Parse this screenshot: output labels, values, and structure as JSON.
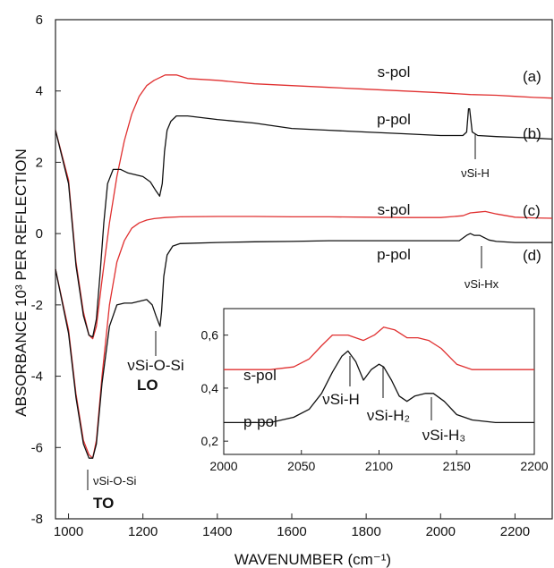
{
  "chart_data": [
    {
      "type": "line",
      "xlabel": "WAVENUMBER (cm⁻¹)",
      "ylabel": "ABSORBANCE 10³ PER REFLECTION",
      "xlim": [
        965,
        2300
      ],
      "ylim": [
        -8,
        6
      ],
      "xticks": [
        1000,
        1200,
        1400,
        1600,
        1800,
        2000,
        2200
      ],
      "yticks": [
        -8,
        -6,
        -4,
        -2,
        0,
        2,
        4,
        6
      ],
      "grid": false,
      "series": [
        {
          "name": "s-pol",
          "tag": "(a)",
          "color": "#e03030",
          "x": [
            965,
            1000,
            1020,
            1040,
            1055,
            1065,
            1075,
            1090,
            1110,
            1130,
            1150,
            1170,
            1190,
            1210,
            1230,
            1260,
            1290,
            1320,
            1400,
            1500,
            1600,
            1700,
            1800,
            1900,
            2000,
            2080,
            2150,
            2200,
            2250,
            2300
          ],
          "y": [
            2.9,
            1.5,
            -0.8,
            -2.2,
            -2.85,
            -2.95,
            -2.6,
            -1.3,
            0.3,
            1.6,
            2.6,
            3.35,
            3.85,
            4.15,
            4.3,
            4.45,
            4.45,
            4.35,
            4.3,
            4.2,
            4.15,
            4.1,
            4.05,
            4.0,
            3.95,
            3.9,
            3.88,
            3.85,
            3.82,
            3.8
          ]
        },
        {
          "name": "p-pol",
          "tag": "(b)",
          "color": "#111111",
          "x": [
            965,
            1000,
            1020,
            1040,
            1055,
            1065,
            1075,
            1085,
            1095,
            1105,
            1120,
            1140,
            1160,
            1180,
            1200,
            1220,
            1235,
            1245,
            1252,
            1258,
            1265,
            1275,
            1290,
            1320,
            1400,
            1500,
            1600,
            1700,
            1800,
            1900,
            2000,
            2060,
            2070,
            2075,
            2078,
            2085,
            2100,
            2150,
            2200,
            2250,
            2300
          ],
          "y": [
            2.9,
            1.4,
            -0.9,
            -2.3,
            -2.85,
            -2.9,
            -2.4,
            -1.1,
            0.3,
            1.4,
            1.8,
            1.8,
            1.7,
            1.65,
            1.6,
            1.45,
            1.2,
            1.05,
            1.4,
            2.3,
            2.9,
            3.15,
            3.3,
            3.3,
            3.2,
            3.1,
            2.95,
            2.9,
            2.85,
            2.8,
            2.75,
            2.75,
            2.85,
            3.5,
            3.5,
            2.85,
            2.75,
            2.72,
            2.7,
            2.68,
            2.65
          ]
        },
        {
          "name": "s-pol",
          "tag": "(c)",
          "color": "#e03030",
          "x": [
            965,
            1000,
            1020,
            1040,
            1055,
            1065,
            1075,
            1090,
            1110,
            1130,
            1150,
            1170,
            1190,
            1210,
            1230,
            1260,
            1300,
            1400,
            1500,
            1600,
            1700,
            1800,
            1900,
            2000,
            2060,
            2080,
            2100,
            2120,
            2150,
            2200,
            2250,
            2300
          ],
          "y": [
            -1.0,
            -2.7,
            -4.5,
            -5.8,
            -6.2,
            -6.3,
            -5.8,
            -4.0,
            -2.0,
            -0.8,
            -0.2,
            0.15,
            0.3,
            0.38,
            0.42,
            0.45,
            0.47,
            0.48,
            0.48,
            0.47,
            0.47,
            0.46,
            0.45,
            0.45,
            0.5,
            0.58,
            0.6,
            0.62,
            0.55,
            0.46,
            0.44,
            0.43
          ]
        },
        {
          "name": "p-pol",
          "tag": "(d)",
          "color": "#111111",
          "x": [
            965,
            1000,
            1020,
            1040,
            1055,
            1065,
            1075,
            1090,
            1110,
            1130,
            1150,
            1170,
            1190,
            1210,
            1225,
            1235,
            1242,
            1246,
            1250,
            1256,
            1265,
            1280,
            1300,
            1400,
            1500,
            1600,
            1700,
            1800,
            1900,
            2000,
            2050,
            2070,
            2080,
            2090,
            2105,
            2130,
            2150,
            2200,
            2250,
            2300
          ],
          "y": [
            -1.0,
            -2.8,
            -4.6,
            -5.9,
            -6.3,
            -6.3,
            -5.9,
            -4.2,
            -2.6,
            -2.0,
            -1.95,
            -1.95,
            -1.9,
            -1.85,
            -2.0,
            -2.3,
            -2.5,
            -2.6,
            -2.2,
            -1.2,
            -0.6,
            -0.35,
            -0.28,
            -0.25,
            -0.23,
            -0.22,
            -0.2,
            -0.2,
            -0.2,
            -0.2,
            -0.2,
            -0.05,
            0.0,
            -0.05,
            -0.05,
            -0.18,
            -0.22,
            -0.25,
            -0.25,
            -0.25
          ]
        }
      ],
      "annotations": [
        {
          "text": "νSi-H",
          "x": 2085,
          "y": 2.1
        },
        {
          "text": "νSi-Hx",
          "x": 2165,
          "y": -1.6
        },
        {
          "text": "νSi-O-Si",
          "x": 1250,
          "y": -4.35
        },
        {
          "text": "LO",
          "x": 1250,
          "y": -5.0
        },
        {
          "text": "νSi-O-Si",
          "x": 1070,
          "y": -7.05
        },
        {
          "text": "TO",
          "x": 1070,
          "y": -7.8
        }
      ]
    },
    {
      "type": "line",
      "inset": true,
      "xlim": [
        2000,
        2200
      ],
      "ylim": [
        0.15,
        0.7
      ],
      "xticks": [
        2000,
        2050,
        2100,
        2150,
        2200
      ],
      "yticks": [
        0.2,
        0.4,
        0.6
      ],
      "ytick_labels": [
        "0,2",
        "0,4",
        "0,6"
      ],
      "grid": false,
      "series": [
        {
          "name": "s-pol",
          "color": "#e03030",
          "x": [
            2000,
            2030,
            2045,
            2055,
            2063,
            2070,
            2080,
            2090,
            2097,
            2103,
            2110,
            2118,
            2125,
            2132,
            2140,
            2150,
            2160,
            2175,
            2200
          ],
          "y": [
            0.47,
            0.47,
            0.48,
            0.51,
            0.56,
            0.6,
            0.6,
            0.58,
            0.6,
            0.63,
            0.62,
            0.59,
            0.59,
            0.58,
            0.55,
            0.49,
            0.47,
            0.47,
            0.47
          ]
        },
        {
          "name": "p-pol",
          "color": "#111111",
          "x": [
            2000,
            2030,
            2045,
            2055,
            2063,
            2070,
            2076,
            2080,
            2085,
            2090,
            2095,
            2100,
            2103,
            2108,
            2113,
            2118,
            2123,
            2130,
            2135,
            2142,
            2150,
            2160,
            2175,
            2200
          ],
          "y": [
            0.27,
            0.27,
            0.29,
            0.32,
            0.38,
            0.46,
            0.52,
            0.54,
            0.5,
            0.43,
            0.47,
            0.49,
            0.48,
            0.43,
            0.37,
            0.35,
            0.37,
            0.38,
            0.38,
            0.35,
            0.3,
            0.28,
            0.27,
            0.27
          ]
        }
      ],
      "annotations": [
        {
          "text": "νSi-H",
          "x": 2080,
          "y": 0.5
        },
        {
          "text": "νSi-H₂",
          "x": 2103,
          "y": 0.46
        },
        {
          "text": "νSi-H₃",
          "x": 2135,
          "y": 0.34
        }
      ]
    }
  ]
}
